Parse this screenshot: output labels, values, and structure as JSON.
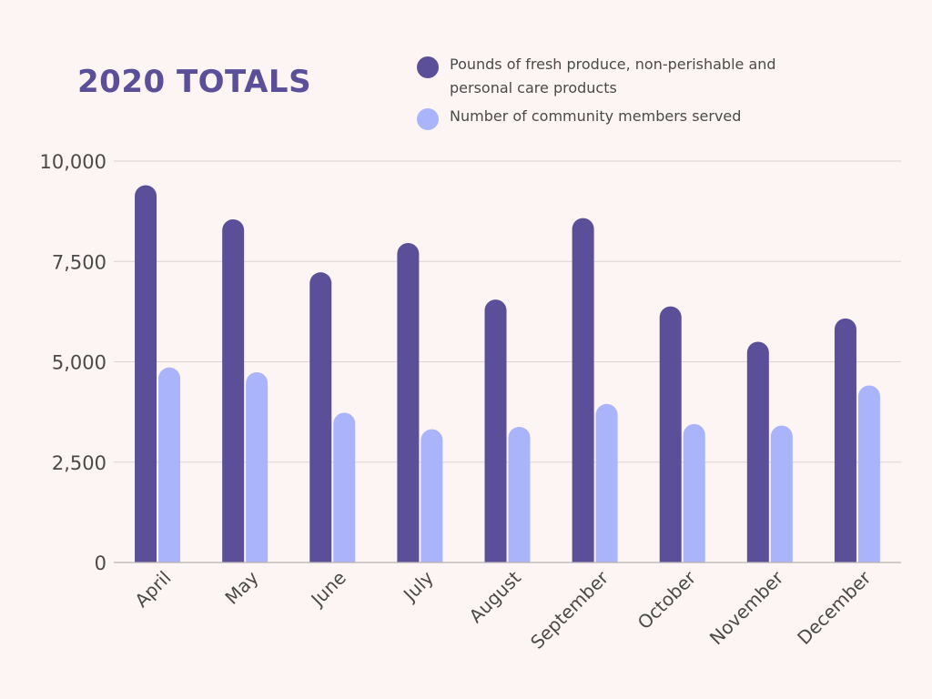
{
  "chart_data": {
    "type": "bar",
    "title": "2020 TOTALS",
    "xlabel": "",
    "ylabel": "",
    "ylim": [
      0,
      10000
    ],
    "yticks": [
      0,
      2500,
      5000,
      7500,
      10000
    ],
    "ytick_labels": [
      "0",
      "2,500",
      "5,000",
      "7,500",
      "10,000"
    ],
    "grid": true,
    "legend_position": "top-right",
    "categories": [
      "April",
      "May",
      "June",
      "July",
      "August",
      "September",
      "October",
      "November",
      "December"
    ],
    "series": [
      {
        "name": "Pounds of fresh produce, non-perishable and personal care products",
        "color": "#5b4f9a",
        "values": [
          9400,
          8550,
          7230,
          7960,
          6550,
          8580,
          6380,
          5500,
          6080
        ]
      },
      {
        "name": "Number of community members served",
        "color": "#a9b4fb",
        "values": [
          4860,
          4740,
          3730,
          3320,
          3380,
          3950,
          3450,
          3410,
          4410
        ]
      }
    ]
  }
}
